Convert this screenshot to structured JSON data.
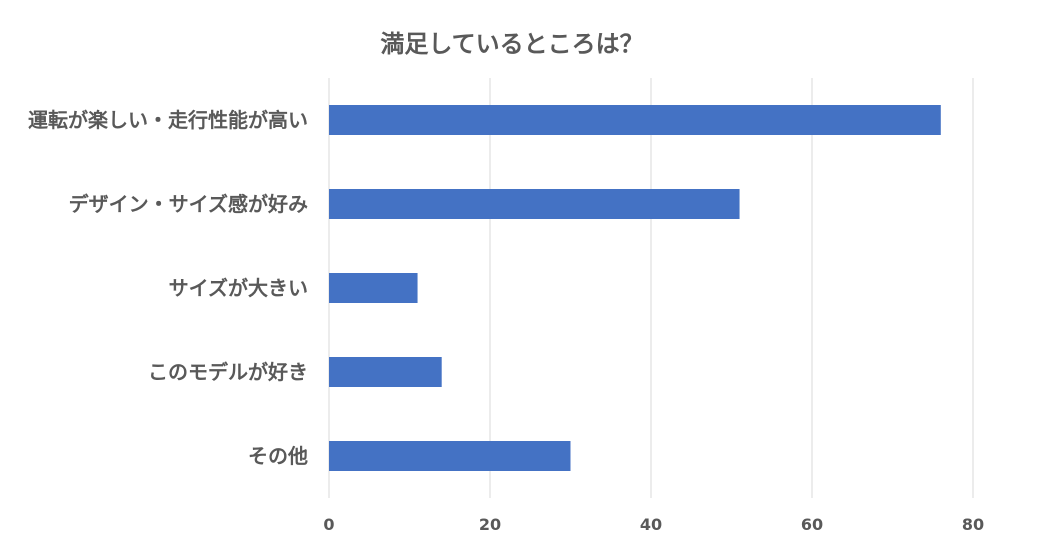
{
  "chart_data": {
    "type": "bar",
    "orientation": "horizontal",
    "title": "満足しているところは？",
    "categories": [
      "運転が楽しい・走行性能が高い",
      "デザイン・サイズ感が好み",
      "サイズが大きい",
      "このモデルが好き",
      "その他"
    ],
    "values": [
      76,
      51,
      11,
      14,
      30
    ],
    "xlim": [
      0,
      80
    ],
    "xticks": [
      0,
      20,
      40,
      60,
      80
    ],
    "xlabel": "",
    "ylabel": "",
    "grid": true,
    "legend": "none",
    "bar_color": "#4472c4"
  }
}
